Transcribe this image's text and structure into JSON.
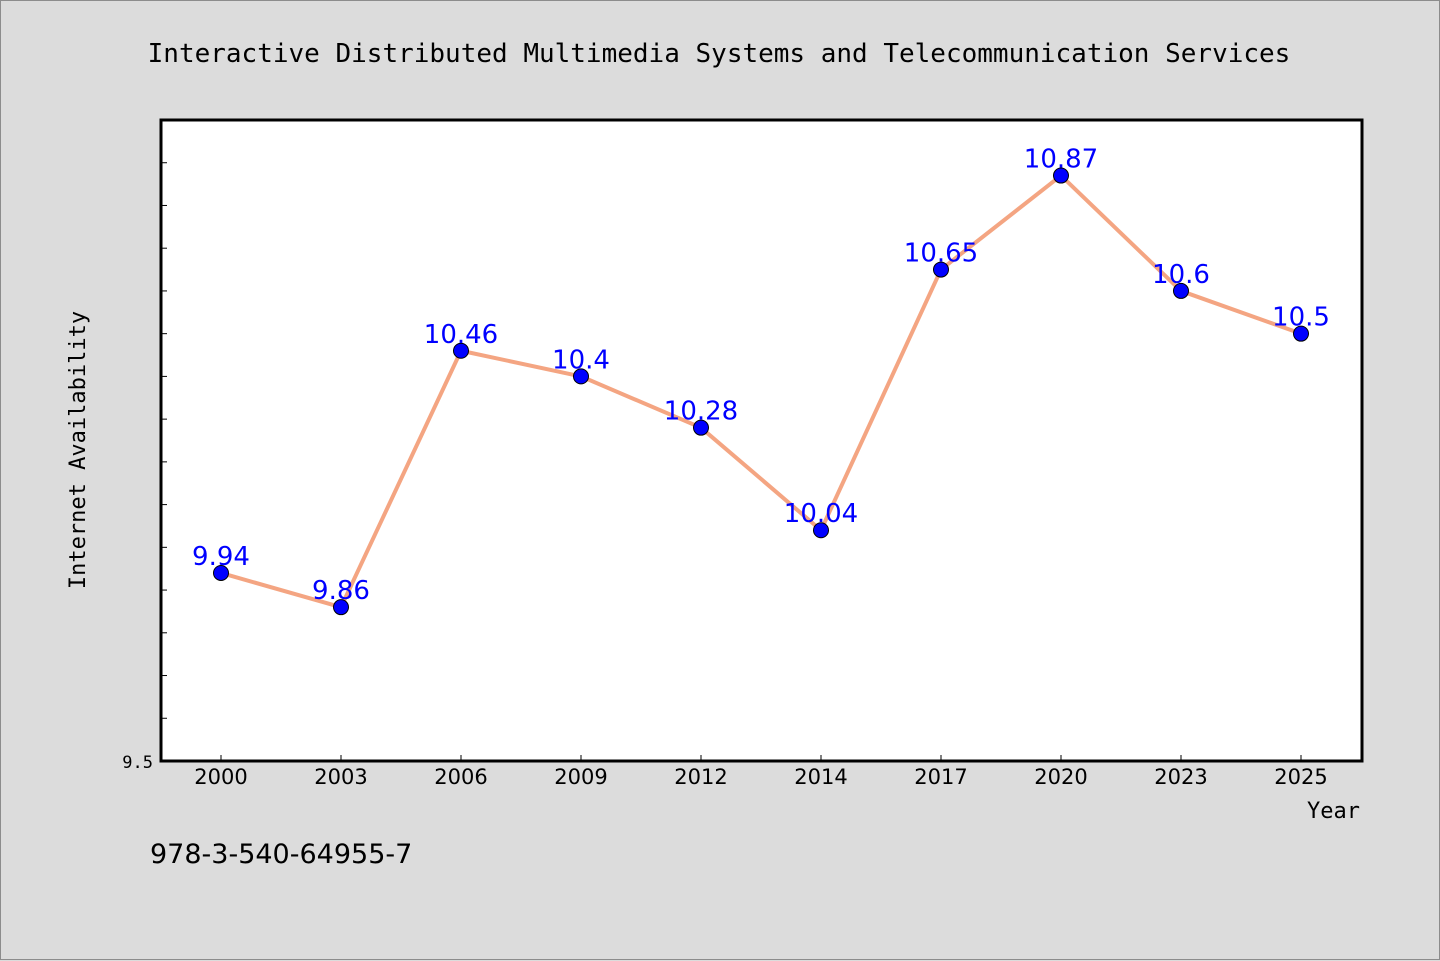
{
  "chart_data": {
    "type": "line",
    "title": "Interactive Distributed Multimedia Systems and Telecommunication Services",
    "xlabel": "Year",
    "ylabel": "Internet Availability",
    "categories": [
      "2000",
      "2003",
      "2006",
      "2009",
      "2012",
      "2014",
      "2017",
      "2020",
      "2023",
      "2025"
    ],
    "series": [
      {
        "values": [
          9.94,
          9.86,
          10.46,
          10.4,
          10.28,
          10.04,
          10.65,
          10.87,
          10.6,
          10.5
        ],
        "data_labels": [
          "9.94",
          "9.86",
          "10.46",
          "10.4",
          "10.28",
          "10.04",
          "10.65",
          "10.87",
          "10.6",
          "10.5"
        ],
        "line_color": "#f4a582",
        "marker_color": "#0000ff",
        "label_color": "#0000ff"
      }
    ],
    "ylim": [
      9.5,
      11.0
    ],
    "y_tick_labels": [
      "9.5"
    ],
    "grid": false,
    "legend": "none",
    "background_color": "#dcdcdc",
    "plot_background_color": "#ffffff"
  },
  "footer": {
    "isbn": "978-3-540-64955-7"
  }
}
